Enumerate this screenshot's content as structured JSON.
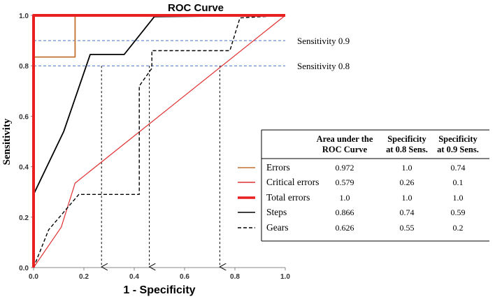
{
  "chart_data": {
    "type": "line",
    "title": "ROC Curve",
    "xlabel": "1 - Specificity",
    "ylabel": "Sensitivity",
    "xlim": [
      0,
      1
    ],
    "ylim": [
      0,
      1
    ],
    "xticks": [
      "0.0",
      "0.2",
      "0.4",
      "0.6",
      "0.8",
      "1.0"
    ],
    "yticks": [
      "0.0",
      "0.2",
      "0.4",
      "0.6",
      "0.8",
      "1.0"
    ],
    "reference_lines": [
      {
        "y": 0.9,
        "label": "Sensitivity 0.9",
        "color": "#4472c4"
      },
      {
        "y": 0.8,
        "label": "Sensitivity 0.8",
        "color": "#4472c4"
      }
    ],
    "arrows": [
      {
        "x": 0.27,
        "from_y": 0.8
      },
      {
        "x": 0.46,
        "from_y": 0.8
      },
      {
        "x": 0.74,
        "from_y": 0.8
      }
    ],
    "series": [
      {
        "name": "Errors",
        "color": "#c07030",
        "style": "solid",
        "width": 1.8,
        "x": [
          0,
          0.003,
          0.003,
          0.165,
          0.165,
          1.0
        ],
        "y": [
          0,
          0.83,
          0.835,
          0.835,
          1.0,
          1.0
        ]
      },
      {
        "name": "Critical errors",
        "color": "#e03030",
        "style": "solid",
        "width": 1.2,
        "x": [
          0,
          0.11,
          0.165,
          1.0
        ],
        "y": [
          0,
          0.16,
          0.335,
          1.0
        ]
      },
      {
        "name": "Total errors",
        "color": "#e82020",
        "style": "solid",
        "width": 4,
        "x": [
          0,
          0,
          1.0
        ],
        "y": [
          0,
          1.0,
          1.0
        ]
      },
      {
        "name": "Steps",
        "color": "#000000",
        "style": "solid",
        "width": 1.8,
        "x": [
          0,
          0,
          0.12,
          0.225,
          0.36,
          0.48,
          1.0
        ],
        "y": [
          0,
          0.29,
          0.54,
          0.845,
          0.845,
          0.995,
          1.0
        ]
      },
      {
        "name": "Gears",
        "color": "#000000",
        "style": "dashed",
        "width": 1.4,
        "x": [
          0,
          0.06,
          0.18,
          0.42,
          0.42,
          0.47,
          0.47,
          0.78,
          0.82,
          1.0
        ],
        "y": [
          0,
          0.15,
          0.29,
          0.29,
          0.72,
          0.79,
          0.86,
          0.86,
          0.99,
          1.0
        ]
      }
    ],
    "table": {
      "headers": [
        "Area under the ROC Curve",
        "Specificity at 0.8 Sens.",
        "Specificity at 0.9 Sens."
      ],
      "rows": [
        {
          "label": "Errors",
          "values": [
            "0.972",
            "1.0",
            "0.74"
          ]
        },
        {
          "label": "Critical errors",
          "values": [
            "0.579",
            "0.26",
            "0.1"
          ]
        },
        {
          "label": "Total errors",
          "values": [
            "1.0",
            "1.0",
            "1.0"
          ]
        },
        {
          "label": "Steps",
          "values": [
            "0.866",
            "0.74",
            "0.59"
          ]
        },
        {
          "label": "Gears",
          "values": [
            "0.626",
            "0.55",
            "0.2"
          ]
        }
      ]
    }
  }
}
